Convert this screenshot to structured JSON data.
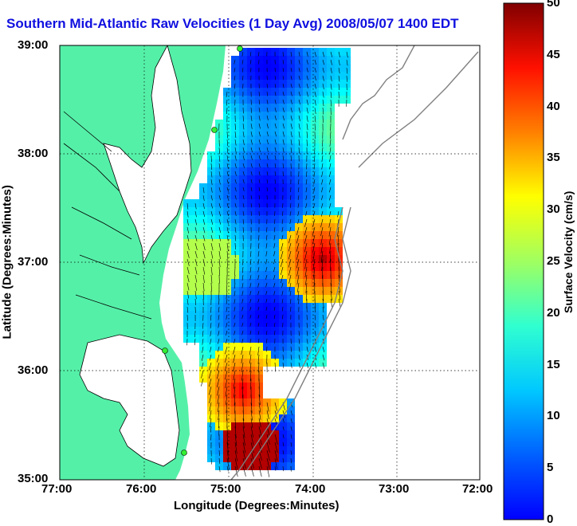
{
  "title": "Southern Mid-Atlantic Raw Velocities (1 Day Avg) 2008/05/07 1400 EDT",
  "x_axis": {
    "label": "Longitude (Degrees:Minutes)",
    "ticks": [
      "77:00",
      "76:00",
      "75:00",
      "74:00",
      "73:00",
      "72:00"
    ]
  },
  "y_axis": {
    "label": "Latitude (Degrees:Minutes)",
    "ticks": [
      "39:00",
      "38:00",
      "37:00",
      "36:00",
      "35:00"
    ]
  },
  "colorbar": {
    "label": "Surface Velocity (cm/s)",
    "min": 0,
    "max": 50,
    "ticks": [
      "0",
      "5",
      "10",
      "15",
      "20",
      "25",
      "30",
      "35",
      "40",
      "45",
      "50"
    ]
  },
  "colors": {
    "title": "#1010e0",
    "land": "#55f0a8",
    "coastline": "#000000",
    "bathymetry": "#808080",
    "station_marker": "#33ee33",
    "vectors": "#000000"
  }
}
